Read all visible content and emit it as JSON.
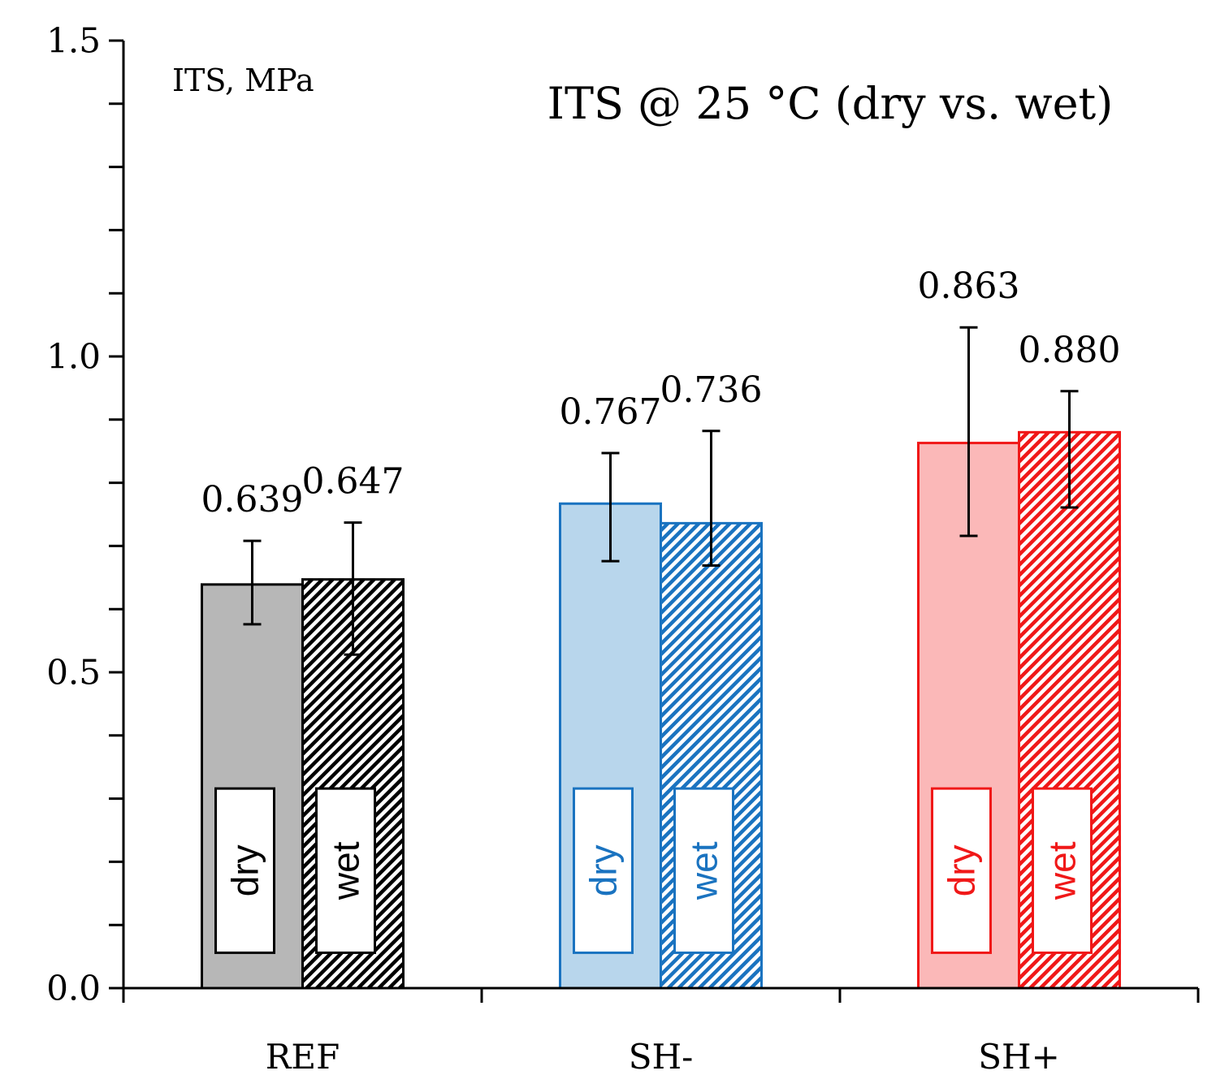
{
  "chart_data": {
    "type": "bar",
    "title": "ITS @ 25 °C (dry vs. wet)",
    "ylabel": "ITS, MPa",
    "xlabel": "",
    "ylim": [
      0,
      1.5
    ],
    "yticks": [
      "0.0",
      "0.5",
      "1.0",
      "1.5"
    ],
    "categories": [
      "REF",
      "SH-",
      "SH+"
    ],
    "series": [
      {
        "name": "dry",
        "values": [
          0.639,
          0.767,
          0.863
        ],
        "labels": [
          "0.639",
          "0.767",
          "0.863"
        ],
        "err_low": [
          0.576,
          0.676,
          0.716
        ],
        "err_high": [
          0.708,
          0.847,
          1.046
        ],
        "pattern": "solid"
      },
      {
        "name": "wet",
        "values": [
          0.647,
          0.736,
          0.88
        ],
        "labels": [
          "0.647",
          "0.736",
          "0.880"
        ],
        "err_low": [
          0.528,
          0.669,
          0.761
        ],
        "err_high": [
          0.737,
          0.882,
          0.945
        ],
        "pattern": "hatched"
      }
    ],
    "colors": {
      "REF": {
        "edge": "#000000",
        "fill": "#b7b7b7",
        "text": "#000000"
      },
      "SH-": {
        "edge": "#1a73c0",
        "fill": "#b8d6ec",
        "text": "#1a73c0"
      },
      "SH+": {
        "edge": "#f01818",
        "fill": "#fbb8b8",
        "text": "#f01818"
      }
    },
    "grid": false,
    "legend": "inline vertical boxes inside bars"
  }
}
